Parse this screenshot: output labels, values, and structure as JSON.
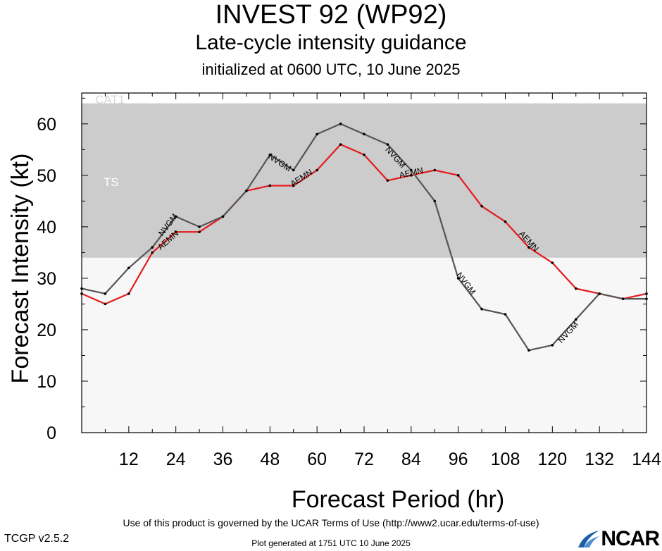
{
  "titles": {
    "main": "INVEST 92 (WP92)",
    "sub": "Late-cycle intensity guidance",
    "init": "initialized at 0600 UTC, 10 June 2025"
  },
  "footer": {
    "terms": "Use of this product is governed by the UCAR Terms of Use (http://www2.ucar.edu/terms-of-use)",
    "version": "TCGP v2.5.2",
    "generated": "Plot generated at 1751 UTC   10 June 2025",
    "logo": "NCAR"
  },
  "colors": {
    "AEMN": "#e41a1c",
    "NVGM": "#555555",
    "ts_band": "#cccccc",
    "background_band": "#f7f7f7"
  },
  "chart_data": {
    "type": "line",
    "xlabel": "Forecast Period (hr)",
    "ylabel": "Forecast Intensity (kt)",
    "xlim": [
      0,
      144
    ],
    "ylim": [
      0,
      66
    ],
    "xticks": [
      12,
      24,
      36,
      48,
      60,
      72,
      84,
      96,
      108,
      120,
      132,
      144
    ],
    "yticks": [
      0,
      10,
      20,
      30,
      40,
      50,
      60
    ],
    "bands": [
      {
        "label": "TS",
        "from": 34,
        "to": 64
      },
      {
        "label": "CAT1",
        "from": 64,
        "to": 66
      }
    ],
    "series": [
      {
        "name": "AEMN",
        "x": [
          0,
          6,
          12,
          18,
          24,
          30,
          36,
          42,
          48,
          54,
          60,
          66,
          72,
          78,
          84,
          90,
          96,
          102,
          108,
          114,
          120,
          126,
          132,
          138,
          144
        ],
        "values": [
          27,
          25,
          27,
          35,
          39,
          39,
          42,
          47,
          48,
          48,
          51,
          56,
          54,
          49,
          50,
          51,
          50,
          44,
          41,
          36,
          33,
          28,
          27,
          26,
          27
        ],
        "labels": [
          {
            "x": 22,
            "y": 37.4
          },
          {
            "x": 56,
            "y": 49.5
          },
          {
            "x": 84,
            "y": 50.5
          },
          {
            "x": 114,
            "y": 37.2
          }
        ]
      },
      {
        "name": "NVGM",
        "x": [
          0,
          6,
          12,
          18,
          24,
          30,
          36,
          42,
          48,
          54,
          60,
          66,
          72,
          78,
          84,
          90,
          96,
          102,
          108,
          114,
          120,
          126,
          132,
          138,
          144
        ],
        "values": [
          28,
          27,
          32,
          36,
          42,
          40,
          42,
          47,
          54,
          51,
          58,
          60,
          58,
          56,
          51,
          45,
          30,
          24,
          23,
          16,
          17,
          22,
          27,
          26,
          26
        ],
        "labels": [
          {
            "x": 22,
            "y": 40.4
          },
          {
            "x": 50.5,
            "y": 52.5
          },
          {
            "x": 80,
            "y": 53.5
          },
          {
            "x": 98,
            "y": 29
          },
          {
            "x": 124,
            "y": 19.5
          }
        ]
      }
    ]
  }
}
